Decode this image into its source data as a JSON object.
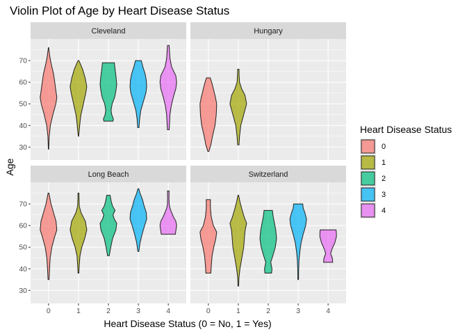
{
  "chart_data": {
    "type": "violin",
    "title": "Violin Plot of Age by Heart Disease Status",
    "xlabel": "Heart Disease Status (0 = No, 1 = Yes)",
    "ylabel": "Age",
    "categories": [
      "0",
      "1",
      "2",
      "3",
      "4"
    ],
    "ylim": [
      24,
      80
    ],
    "yticks": [
      30,
      40,
      50,
      60,
      70
    ],
    "grid": true,
    "legend": {
      "title": "Heart Disease Status",
      "placement": "right",
      "entries": [
        "0",
        "1",
        "2",
        "3",
        "4"
      ]
    },
    "colors": [
      "#F8766D",
      "#A3A500",
      "#00BF7D",
      "#00B0F6",
      "#E76BF3"
    ],
    "facets": [
      {
        "name": "Cleveland",
        "violins": [
          {
            "category": "0",
            "profile": [
              [
                29,
                0.02
              ],
              [
                35,
                0.08
              ],
              [
                40,
                0.22
              ],
              [
                45,
                0.52
              ],
              [
                50,
                0.88
              ],
              [
                53,
                1.0
              ],
              [
                57,
                0.85
              ],
              [
                60,
                0.75
              ],
              [
                64,
                0.6
              ],
              [
                68,
                0.35
              ],
              [
                72,
                0.15
              ],
              [
                76,
                0.02
              ]
            ]
          },
          {
            "category": "1",
            "profile": [
              [
                35,
                0.02
              ],
              [
                38,
                0.1
              ],
              [
                42,
                0.2
              ],
              [
                45,
                0.3
              ],
              [
                48,
                0.48
              ],
              [
                52,
                0.7
              ],
              [
                55,
                0.88
              ],
              [
                58,
                1.0
              ],
              [
                62,
                0.8
              ],
              [
                66,
                0.5
              ],
              [
                70,
                0.06
              ]
            ]
          },
          {
            "category": "2",
            "profile": [
              [
                42,
                0.55
              ],
              [
                43,
                0.6
              ],
              [
                45,
                0.4
              ],
              [
                47,
                0.32
              ],
              [
                50,
                0.45
              ],
              [
                53,
                0.75
              ],
              [
                56,
                0.9
              ],
              [
                59,
                1.0
              ],
              [
                63,
                0.9
              ],
              [
                66,
                0.8
              ],
              [
                69,
                0.72
              ]
            ]
          },
          {
            "category": "3",
            "profile": [
              [
                39,
                0.08
              ],
              [
                43,
                0.15
              ],
              [
                47,
                0.3
              ],
              [
                51,
                0.6
              ],
              [
                55,
                0.9
              ],
              [
                58,
                1.0
              ],
              [
                61,
                0.95
              ],
              [
                64,
                0.8
              ],
              [
                67,
                0.55
              ],
              [
                70,
                0.35
              ]
            ]
          },
          {
            "category": "4",
            "profile": [
              [
                38,
                0.1
              ],
              [
                41,
                0.15
              ],
              [
                45,
                0.2
              ],
              [
                49,
                0.35
              ],
              [
                53,
                0.6
              ],
              [
                57,
                0.9
              ],
              [
                60,
                1.0
              ],
              [
                63,
                0.9
              ],
              [
                67,
                0.4
              ],
              [
                71,
                0.2
              ],
              [
                77,
                0.1
              ]
            ]
          }
        ]
      },
      {
        "name": "Hungary",
        "violins": [
          {
            "category": "0",
            "profile": [
              [
                28,
                0.06
              ],
              [
                31,
                0.3
              ],
              [
                35,
                0.5
              ],
              [
                40,
                0.8
              ],
              [
                45,
                0.95
              ],
              [
                50,
                1.0
              ],
              [
                53,
                0.85
              ],
              [
                57,
                0.6
              ],
              [
                60,
                0.4
              ],
              [
                62,
                0.22
              ]
            ]
          },
          {
            "category": "1",
            "profile": [
              [
                31,
                0.08
              ],
              [
                35,
                0.15
              ],
              [
                40,
                0.3
              ],
              [
                45,
                0.65
              ],
              [
                50,
                1.0
              ],
              [
                54,
                0.8
              ],
              [
                57,
                0.4
              ],
              [
                60,
                0.15
              ],
              [
                63,
                0.1
              ],
              [
                66,
                0.08
              ]
            ]
          }
        ]
      },
      {
        "name": "Long Beach",
        "violins": [
          {
            "category": "0",
            "profile": [
              [
                35,
                0.06
              ],
              [
                40,
                0.12
              ],
              [
                45,
                0.2
              ],
              [
                50,
                0.4
              ],
              [
                55,
                0.75
              ],
              [
                58,
                1.0
              ],
              [
                62,
                0.9
              ],
              [
                66,
                0.6
              ],
              [
                70,
                0.3
              ],
              [
                75,
                0.05
              ]
            ]
          },
          {
            "category": "1",
            "profile": [
              [
                38,
                0.05
              ],
              [
                42,
                0.1
              ],
              [
                46,
                0.18
              ],
              [
                50,
                0.4
              ],
              [
                54,
                0.75
              ],
              [
                58,
                1.0
              ],
              [
                62,
                0.82
              ],
              [
                66,
                0.3
              ],
              [
                69,
                0.1
              ],
              [
                72,
                0.07
              ],
              [
                75,
                0.06
              ]
            ]
          },
          {
            "category": "2",
            "profile": [
              [
                46,
                0.1
              ],
              [
                50,
                0.28
              ],
              [
                54,
                0.5
              ],
              [
                58,
                0.9
              ],
              [
                61,
                1.0
              ],
              [
                63,
                0.7
              ],
              [
                65,
                0.55
              ],
              [
                67,
                0.8
              ],
              [
                69,
                0.5
              ],
              [
                71,
                0.35
              ],
              [
                74,
                0.2
              ]
            ]
          },
          {
            "category": "3",
            "profile": [
              [
                48,
                0.06
              ],
              [
                52,
                0.2
              ],
              [
                56,
                0.45
              ],
              [
                60,
                0.75
              ],
              [
                63,
                1.0
              ],
              [
                66,
                0.95
              ],
              [
                69,
                0.7
              ],
              [
                72,
                0.5
              ],
              [
                75,
                0.2
              ],
              [
                77,
                0.05
              ]
            ]
          },
          {
            "category": "4",
            "profile": [
              [
                56,
                0.85
              ],
              [
                58,
                0.92
              ],
              [
                60,
                1.0
              ],
              [
                62,
                0.9
              ],
              [
                64,
                0.62
              ],
              [
                66,
                0.4
              ],
              [
                68,
                0.2
              ],
              [
                70,
                0.1
              ],
              [
                73,
                0.08
              ],
              [
                76,
                0.1
              ]
            ]
          }
        ]
      },
      {
        "name": "Switzerland",
        "violins": [
          {
            "category": "0",
            "profile": [
              [
                38,
                0.3
              ],
              [
                42,
                0.36
              ],
              [
                46,
                0.45
              ],
              [
                50,
                0.65
              ],
              [
                54,
                0.9
              ],
              [
                57,
                1.0
              ],
              [
                60,
                0.6
              ],
              [
                64,
                0.35
              ],
              [
                68,
                0.25
              ],
              [
                72,
                0.25
              ]
            ]
          },
          {
            "category": "1",
            "profile": [
              [
                32,
                0.04
              ],
              [
                36,
                0.08
              ],
              [
                40,
                0.2
              ],
              [
                45,
                0.42
              ],
              [
                50,
                0.65
              ],
              [
                55,
                0.75
              ],
              [
                58,
                0.82
              ],
              [
                61,
                1.0
              ],
              [
                64,
                0.7
              ],
              [
                68,
                0.4
              ],
              [
                71,
                0.2
              ],
              [
                74,
                0.04
              ]
            ]
          },
          {
            "category": "2",
            "profile": [
              [
                38,
                0.4
              ],
              [
                40,
                0.45
              ],
              [
                43,
                0.3
              ],
              [
                46,
                0.55
              ],
              [
                50,
                0.85
              ],
              [
                54,
                1.0
              ],
              [
                58,
                0.9
              ],
              [
                61,
                0.75
              ],
              [
                64,
                0.6
              ],
              [
                67,
                0.5
              ]
            ]
          },
          {
            "category": "3",
            "profile": [
              [
                35,
                0.04
              ],
              [
                40,
                0.06
              ],
              [
                44,
                0.1
              ],
              [
                48,
                0.2
              ],
              [
                52,
                0.35
              ],
              [
                56,
                0.6
              ],
              [
                60,
                0.9
              ],
              [
                63,
                1.0
              ],
              [
                66,
                0.8
              ],
              [
                68,
                0.6
              ],
              [
                70,
                0.55
              ]
            ]
          },
          {
            "category": "4",
            "profile": [
              [
                43,
                0.55
              ],
              [
                45,
                0.5
              ],
              [
                47,
                0.3
              ],
              [
                49,
                0.45
              ],
              [
                52,
                0.8
              ],
              [
                55,
                1.0
              ],
              [
                57,
                0.98
              ],
              [
                58,
                0.95
              ]
            ]
          }
        ]
      }
    ]
  }
}
